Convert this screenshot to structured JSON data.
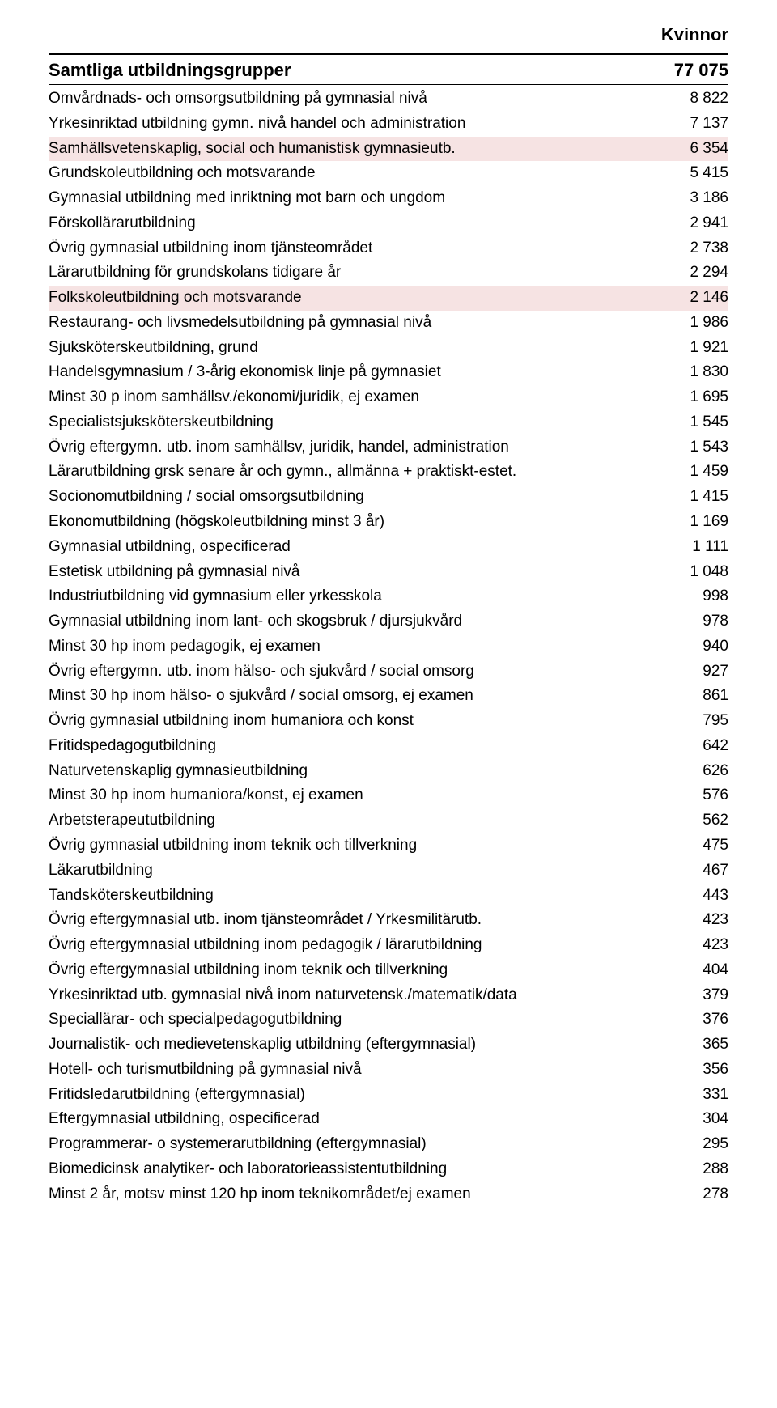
{
  "header": "Kvinnor",
  "title_row": {
    "label": "Samtliga utbildningsgrupper",
    "value": "77 075"
  },
  "rows": [
    {
      "label": "Omvårdnads- och omsorgsutbildning på gymnasial nivå",
      "value": "8 822",
      "hl": false
    },
    {
      "label": "Yrkesinriktad utbildning gymn. nivå  handel och administration",
      "value": "7 137",
      "hl": false
    },
    {
      "label": "Samhällsvetenskaplig, social och humanistisk gymnasieutb.",
      "value": "6 354",
      "hl": true
    },
    {
      "label": "Grundskoleutbildning och motsvarande",
      "value": "5 415",
      "hl": false
    },
    {
      "label": "Gymnasial utbildning med inriktning mot barn och ungdom",
      "value": "3 186",
      "hl": false
    },
    {
      "label": "Förskollärarutbildning",
      "value": "2 941",
      "hl": false
    },
    {
      "label": "Övrig gymnasial utbildning inom tjänsteområdet",
      "value": "2 738",
      "hl": false
    },
    {
      "label": "Lärarutbildning för grundskolans tidigare år",
      "value": "2 294",
      "hl": false
    },
    {
      "label": "Folkskoleutbildning och motsvarande",
      "value": "2 146",
      "hl": true
    },
    {
      "label": "Restaurang- och livsmedelsutbildning på gymnasial nivå",
      "value": "1 986",
      "hl": false
    },
    {
      "label": "Sjuksköterskeutbildning, grund",
      "value": "1 921",
      "hl": false
    },
    {
      "label": "Handelsgymnasium / 3-årig ekonomisk linje på gymnasiet",
      "value": "1 830",
      "hl": false
    },
    {
      "label": "Minst 30 p inom samhällsv./ekonomi/juridik, ej examen",
      "value": "1 695",
      "hl": false
    },
    {
      "label": "Specialistsjuksköterskeutbildning",
      "value": "1 545",
      "hl": false
    },
    {
      "label": "Övrig eftergymn. utb. inom samhällsv, juridik, handel, administration",
      "value": "1 543",
      "hl": false
    },
    {
      "label": "Lärarutbildning grsk senare år och gymn., allmänna + praktiskt-estet.",
      "value": "1 459",
      "hl": false
    },
    {
      "label": "Socionomutbildning / social omsorgsutbildning",
      "value": "1 415",
      "hl": false
    },
    {
      "label": "Ekonomutbildning (högskoleutbildning minst 3 år)",
      "value": "1 169",
      "hl": false
    },
    {
      "label": "Gymnasial utbildning, ospecificerad",
      "value": "1 111",
      "hl": false
    },
    {
      "label": "Estetisk utbildning på gymnasial nivå",
      "value": "1 048",
      "hl": false
    },
    {
      "label": "Industriutbildning vid gymnasium eller yrkesskola",
      "value": "998",
      "hl": false
    },
    {
      "label": "Gymnasial utbildning inom lant- och skogsbruk / djursjukvård",
      "value": "978",
      "hl": false
    },
    {
      "label": "Minst 30 hp inom pedagogik, ej examen",
      "value": "940",
      "hl": false
    },
    {
      "label": "Övrig eftergymn. utb. inom hälso- och sjukvård / social omsorg",
      "value": "927",
      "hl": false
    },
    {
      "label": "Minst 30 hp inom hälso- o sjukvård / social omsorg, ej examen",
      "value": "861",
      "hl": false
    },
    {
      "label": "Övrig gymnasial utbildning inom humaniora och konst",
      "value": "795",
      "hl": false
    },
    {
      "label": "Fritidspedagogutbildning",
      "value": "642",
      "hl": false
    },
    {
      "label": "Naturvetenskaplig gymnasieutbildning",
      "value": "626",
      "hl": false
    },
    {
      "label": "Minst 30 hp inom humaniora/konst, ej examen",
      "value": "576",
      "hl": false
    },
    {
      "label": "Arbetsterapeututbildning",
      "value": "562",
      "hl": false
    },
    {
      "label": "Övrig gymnasial utbildning inom teknik och tillverkning",
      "value": "475",
      "hl": false
    },
    {
      "label": "Läkarutbildning",
      "value": "467",
      "hl": false
    },
    {
      "label": "Tandsköterskeutbildning",
      "value": "443",
      "hl": false
    },
    {
      "label": "Övrig eftergymnasial utb. inom tjänsteområdet / Yrkesmilitärutb.",
      "value": "423",
      "hl": false
    },
    {
      "label": "Övrig eftergymnasial utbildning inom pedagogik / lärarutbildning",
      "value": "423",
      "hl": false
    },
    {
      "label": "Övrig eftergymnasial utbildning inom teknik och tillverkning",
      "value": "404",
      "hl": false
    },
    {
      "label": "Yrkesinriktad utb. gymnasial nivå inom naturvetensk./matematik/data",
      "value": "379",
      "hl": false
    },
    {
      "label": "Speciallärar- och specialpedagogutbildning",
      "value": "376",
      "hl": false
    },
    {
      "label": "Journalistik- och medievetenskaplig utbildning (eftergymnasial)",
      "value": "365",
      "hl": false
    },
    {
      "label": "Hotell- och turismutbildning på gymnasial nivå",
      "value": "356",
      "hl": false
    },
    {
      "label": "Fritidsledarutbildning (eftergymnasial)",
      "value": "331",
      "hl": false
    },
    {
      "label": "Eftergymnasial utbildning, ospecificerad",
      "value": "304",
      "hl": false
    },
    {
      "label": "Programmerar- o systemerarutbildning (eftergymnasial)",
      "value": "295",
      "hl": false
    },
    {
      "label": "Biomedicinsk analytiker- och laboratorieassistentutbildning",
      "value": "288",
      "hl": false
    },
    {
      "label": "Minst 2 år, motsv minst 120 hp inom teknikområdet/ej examen",
      "value": "278",
      "hl": false
    }
  ]
}
